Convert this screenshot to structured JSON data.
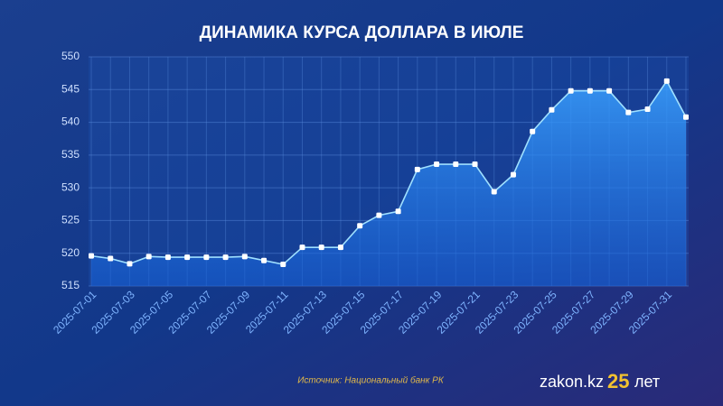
{
  "chart_data": {
    "type": "line",
    "title": "ДИНАМИКА КУРСА ДОЛЛАРА В ИЮЛЕ",
    "categories": [
      "2025-07-01",
      null,
      "2025-07-03",
      null,
      "2025-07-05",
      null,
      "2025-07-07",
      null,
      "2025-07-09",
      null,
      "2025-07-11",
      null,
      "2025-07-13",
      null,
      "2025-07-15",
      null,
      "2025-07-17",
      null,
      "2025-07-19",
      null,
      "2025-07-21",
      null,
      "2025-07-23",
      null,
      "2025-07-25",
      null,
      "2025-07-27",
      null,
      "2025-07-29",
      null,
      "2025-07-31",
      null
    ],
    "values": [
      519.6,
      519.2,
      518.4,
      519.5,
      519.4,
      519.4,
      519.4,
      519.4,
      519.5,
      518.9,
      518.3,
      520.9,
      520.9,
      520.9,
      524.2,
      525.8,
      526.4,
      532.8,
      533.6,
      533.6,
      533.6,
      529.4,
      532.0,
      538.6,
      541.9,
      544.8,
      544.8,
      544.8,
      541.5,
      542.0,
      546.3,
      540.8
    ],
    "color": "#ffffff",
    "ylim": [
      515,
      550
    ],
    "yticks": [
      515,
      520,
      525,
      530,
      535,
      540,
      545,
      550
    ],
    "grid": true,
    "source": "Источник: Национальный банк РК",
    "brand": {
      "name": "zakon.kz",
      "years": "25",
      "suffix": "лет"
    }
  }
}
